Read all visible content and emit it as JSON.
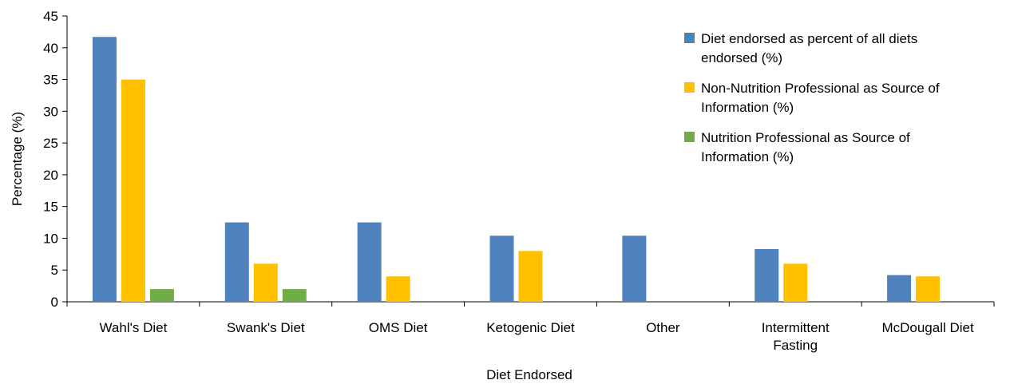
{
  "chart_data": {
    "type": "bar",
    "title": "",
    "xlabel": "Diet Endorsed",
    "ylabel": "Percentage (%)",
    "ylim": [
      0,
      45
    ],
    "yticks": [
      0,
      5,
      10,
      15,
      20,
      25,
      30,
      35,
      40,
      45
    ],
    "grid": false,
    "legend_position": "top-right",
    "categories": [
      [
        "Wahl's Diet"
      ],
      [
        "Swank's Diet"
      ],
      [
        "OMS Diet"
      ],
      [
        "Ketogenic Diet"
      ],
      [
        "Other"
      ],
      [
        "Intermittent",
        "Fasting"
      ],
      [
        "McDougall Diet"
      ]
    ],
    "series": [
      {
        "name": [
          "Diet endorsed as percent of all diets",
          "endorsed (%)"
        ],
        "color": "#4f81bd",
        "values": [
          41.7,
          12.5,
          12.5,
          10.4,
          10.4,
          8.3,
          4.2
        ]
      },
      {
        "name": [
          "Non-Nutrition Professional as Source of",
          "Information (%)"
        ],
        "color": "#ffc000",
        "values": [
          35.0,
          6.0,
          4.0,
          8.0,
          0,
          6.0,
          4.0
        ]
      },
      {
        "name": [
          "Nutrition Professional as Source of",
          "Information (%)"
        ],
        "color": "#70ad47",
        "values": [
          2.0,
          2.0,
          0,
          0,
          0,
          0,
          0
        ]
      }
    ]
  }
}
